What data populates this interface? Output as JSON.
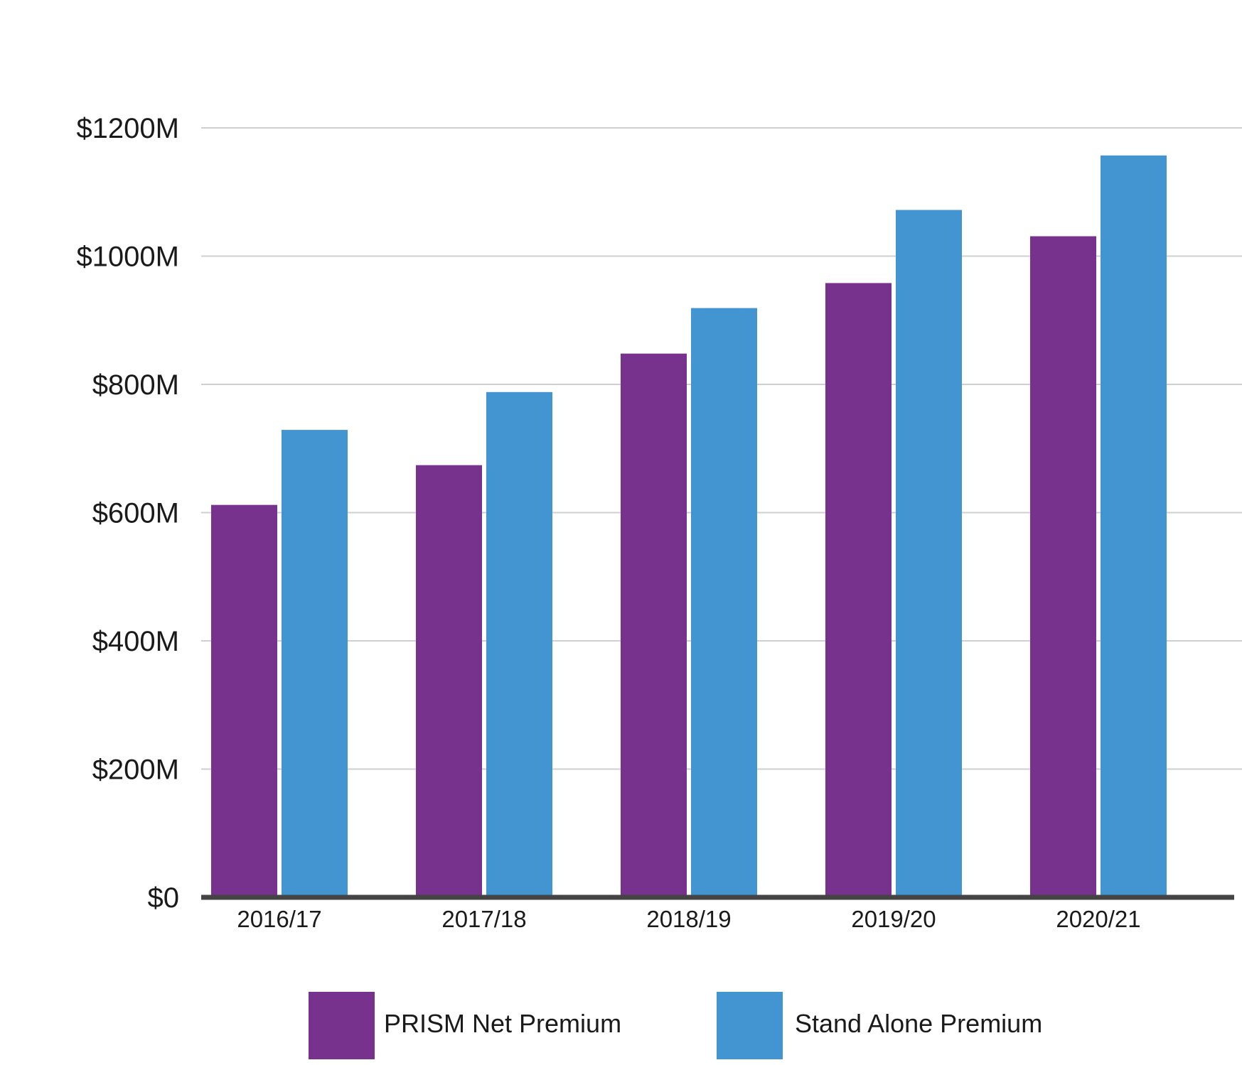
{
  "chart_data": {
    "type": "bar",
    "categories": [
      "2016/17",
      "2017/18",
      "2018/19",
      "2019/20",
      "2020/21"
    ],
    "series": [
      {
        "name": "PRISM Net Premium",
        "color": "#76328c",
        "values": [
          612,
          674,
          848,
          958,
          1031
        ]
      },
      {
        "name": "Stand Alone Premium",
        "color": "#4295d1",
        "values": [
          729,
          788,
          919,
          1072,
          1157
        ]
      }
    ],
    "title": "",
    "xlabel": "",
    "ylabel": "",
    "ylim": [
      0,
      1200
    ],
    "yticks": [
      {
        "value": 0,
        "label": "$0"
      },
      {
        "value": 200,
        "label": "$200M"
      },
      {
        "value": 400,
        "label": "$400M"
      },
      {
        "value": 600,
        "label": "$600M"
      },
      {
        "value": 800,
        "label": "$800M"
      },
      {
        "value": 1000,
        "label": "$1000M"
      },
      {
        "value": 1200,
        "label": "$1200M"
      }
    ],
    "grid": true,
    "legend_position": "bottom",
    "gridline_color": "#cfcfcf",
    "baseline_color": "#444444"
  }
}
